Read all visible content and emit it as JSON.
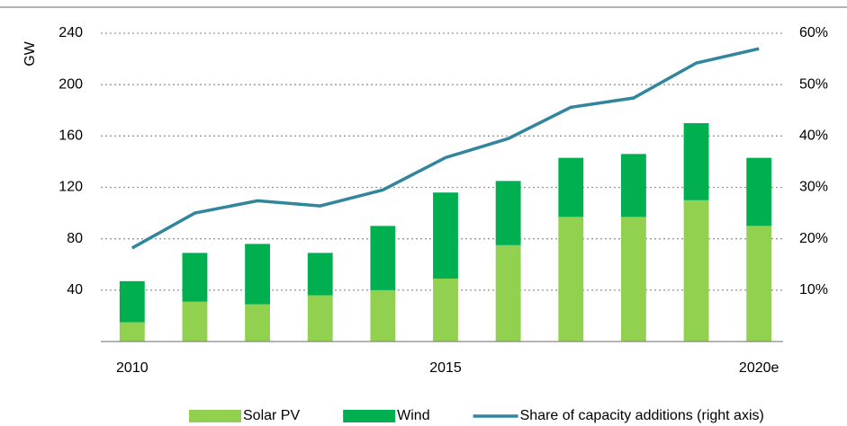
{
  "chart_data": {
    "type": "bar",
    "stacked": true,
    "y_label": "GW",
    "categories": [
      "2010",
      null,
      null,
      null,
      null,
      "2015",
      null,
      null,
      null,
      null,
      "2020e"
    ],
    "series": [
      {
        "name": "Solar PV",
        "color": "#92d050",
        "values": [
          15,
          31,
          29,
          36,
          40,
          49,
          75,
          97,
          97,
          110,
          90
        ]
      },
      {
        "name": "Wind",
        "color": "#00b050",
        "values": [
          32,
          38,
          47,
          33,
          50,
          67,
          50,
          46,
          49,
          60,
          53
        ]
      },
      {
        "name": "Share of capacity additions (right axis)",
        "type": "line",
        "axis": "y2",
        "color": "#31859c",
        "values": [
          18.2,
          25,
          27.4,
          26.4,
          29.5,
          35.8,
          39.5,
          45.6,
          47.4,
          54.2,
          57
        ]
      }
    ],
    "ylim": [
      0,
      240
    ],
    "yticks": [
      40,
      80,
      120,
      160,
      200,
      240
    ],
    "y2lim": [
      0,
      60
    ],
    "y2ticks": [
      {
        "value": 10,
        "label": "10%"
      },
      {
        "value": 20,
        "label": "20%"
      },
      {
        "value": 30,
        "label": "30%"
      },
      {
        "value": 40,
        "label": "40%"
      },
      {
        "value": 50,
        "label": "50%"
      },
      {
        "value": 60,
        "label": "60%"
      }
    ],
    "grid": true,
    "legend": "bottom"
  }
}
